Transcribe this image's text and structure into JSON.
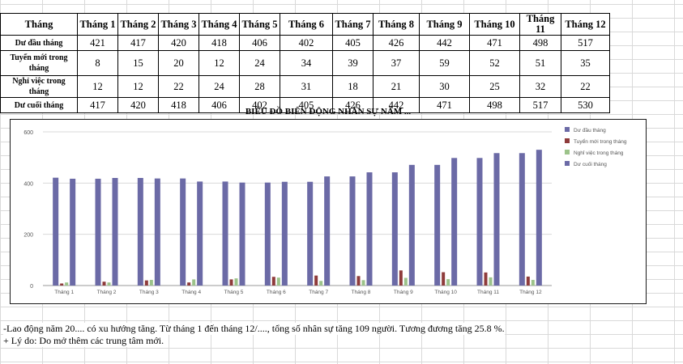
{
  "table": {
    "header": [
      "Tháng",
      "Tháng 1",
      "Tháng 2",
      "Tháng 3",
      "Tháng 4",
      "Tháng 5",
      "Tháng 6",
      "Tháng 7",
      "Tháng 8",
      "Tháng 9",
      "Tháng 10",
      "Tháng 11",
      "Tháng 12"
    ],
    "rows": [
      {
        "label": "Dư đầu tháng",
        "values": [
          "421",
          "417",
          "420",
          "418",
          "406",
          "402",
          "405",
          "426",
          "442",
          "471",
          "498",
          "517"
        ]
      },
      {
        "label": "Tuyển mới trong tháng",
        "values": [
          "8",
          "15",
          "20",
          "12",
          "24",
          "34",
          "39",
          "37",
          "59",
          "52",
          "51",
          "35"
        ]
      },
      {
        "label": "Nghỉ việc trong tháng",
        "values": [
          "12",
          "12",
          "22",
          "24",
          "28",
          "31",
          "18",
          "21",
          "30",
          "25",
          "32",
          "22"
        ]
      },
      {
        "label": "Dư cuối tháng",
        "values": [
          "417",
          "420",
          "418",
          "406",
          "402",
          "405",
          "426",
          "442",
          "471",
          "498",
          "517",
          "530"
        ]
      }
    ]
  },
  "chart_data": {
    "type": "bar",
    "title": "BIỂU ĐỒ BIẾN ĐỘNG NHÂN SỰ NĂM ...",
    "categories": [
      "Tháng 1",
      "Tháng 2",
      "Tháng 3",
      "Tháng 4",
      "Tháng 5",
      "Tháng 6",
      "Tháng 7",
      "Tháng 8",
      "Tháng 9",
      "Tháng 10",
      "Tháng 11",
      "Tháng 12"
    ],
    "series": [
      {
        "name": "Dư đầu tháng",
        "color": "#6b6aa6",
        "values": [
          421,
          417,
          420,
          418,
          406,
          402,
          405,
          426,
          442,
          471,
          498,
          517
        ]
      },
      {
        "name": "Tuyển mới trong tháng",
        "color": "#8e3b3b",
        "values": [
          8,
          15,
          20,
          12,
          24,
          34,
          39,
          37,
          59,
          52,
          51,
          35
        ]
      },
      {
        "name": "Nghỉ việc trong tháng",
        "color": "#9cc38a",
        "values": [
          12,
          12,
          22,
          24,
          28,
          31,
          18,
          21,
          30,
          25,
          32,
          22
        ]
      },
      {
        "name": "Dư cuối tháng",
        "color": "#6b6aa6",
        "values": [
          417,
          420,
          418,
          406,
          402,
          405,
          426,
          442,
          471,
          498,
          517,
          530
        ]
      }
    ],
    "ylim": [
      0,
      600
    ],
    "yticks": [
      "0",
      "200",
      "400",
      "600"
    ],
    "grid": true,
    "legend": "right"
  },
  "notes": [
    "-Lao động năm 20.... có xu hướng tăng. Từ tháng 1 đến tháng 12/...., tổng số nhân sự tăng 109 người. Tương đương tăng 25.8 %.",
    "+ Lý do: Do mở thêm các trung tâm mới."
  ]
}
